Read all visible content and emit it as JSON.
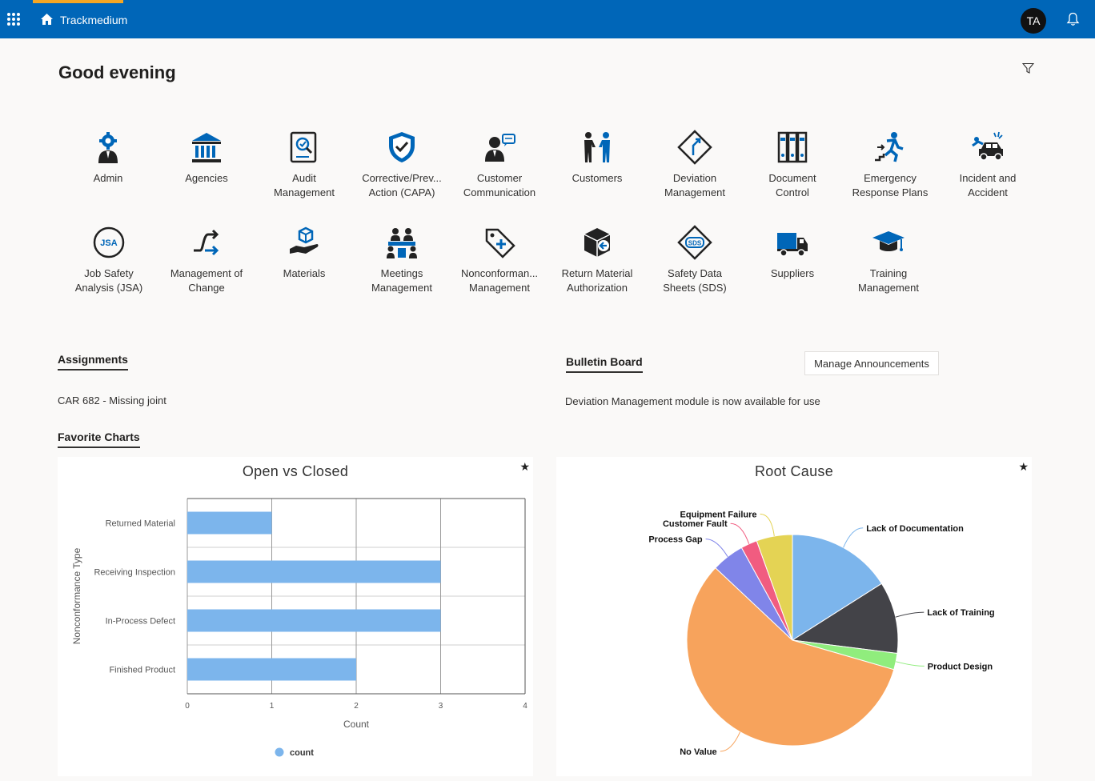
{
  "header": {
    "app_name": "Trackmedium",
    "avatar_initials": "TA",
    "brand_color": "#0066b8",
    "accent_color": "#f5a623"
  },
  "greeting": "Good evening",
  "modules": [
    {
      "line1": "Admin",
      "line2": "",
      "icon": "admin-gear-icon"
    },
    {
      "line1": "Agencies",
      "line2": "",
      "icon": "agency-building-icon"
    },
    {
      "line1": "Audit",
      "line2": "Management",
      "icon": "audit-icon"
    },
    {
      "line1": "Corrective/Prev...",
      "line2": "Action (CAPA)",
      "icon": "shield-check-icon"
    },
    {
      "line1": "Customer",
      "line2": "Communication",
      "icon": "customer-communication-icon"
    },
    {
      "line1": "Customers",
      "line2": "",
      "icon": "customers-handshake-icon"
    },
    {
      "line1": "Deviation",
      "line2": "Management",
      "icon": "deviation-icon"
    },
    {
      "line1": "Document",
      "line2": "Control",
      "icon": "binders-icon"
    },
    {
      "line1": "Emergency",
      "line2": "Response Plans",
      "icon": "emergency-exit-icon"
    },
    {
      "line1": "Incident and",
      "line2": "Accident",
      "icon": "car-crash-icon"
    },
    {
      "line1": "Job Safety",
      "line2": "Analysis (JSA)",
      "icon": "jsa-badge-icon"
    },
    {
      "line1": "Management of",
      "line2": "Change",
      "icon": "change-arrows-icon"
    },
    {
      "line1": "Materials",
      "line2": "",
      "icon": "materials-hand-box-icon"
    },
    {
      "line1": "Meetings",
      "line2": "Management",
      "icon": "meeting-people-icon"
    },
    {
      "line1": "Nonconforman...",
      "line2": "Management",
      "icon": "tag-plus-icon"
    },
    {
      "line1": "Return Material",
      "line2": "Authorization",
      "icon": "return-box-icon"
    },
    {
      "line1": "Safety Data",
      "line2": "Sheets (SDS)",
      "icon": "sds-diamond-icon"
    },
    {
      "line1": "Suppliers",
      "line2": "",
      "icon": "truck-icon"
    },
    {
      "line1": "Training",
      "line2": "Management",
      "icon": "graduation-cap-icon"
    }
  ],
  "assignments": {
    "title": "Assignments",
    "item": "CAR 682 - Missing joint"
  },
  "bulletin": {
    "title": "Bulletin Board",
    "button": "Manage Announcements",
    "item": "Deviation Management module is now available for use"
  },
  "favorites": {
    "title": "Favorite Charts"
  },
  "chart_data": [
    {
      "type": "bar",
      "orientation": "horizontal",
      "title": "Open vs Closed",
      "categories": [
        "Returned Material",
        "Receiving Inspection",
        "In-Process Defect",
        "Finished Product"
      ],
      "series": [
        {
          "name": "count",
          "values": [
            1,
            3,
            3,
            2
          ],
          "color": "#7cb5ec"
        }
      ],
      "xlabel": "Count",
      "ylabel": "Nonconformance Type",
      "xlim": [
        0,
        4
      ],
      "ticks": [
        "0",
        "1",
        "2",
        "3",
        "4"
      ],
      "grid": true,
      "legend": "bottom"
    },
    {
      "type": "pie",
      "title": "Root Cause",
      "slices": [
        {
          "label": "Lack of Documentation",
          "value": 16,
          "color": "#7cb5ec"
        },
        {
          "label": "Lack of Training",
          "value": 11,
          "color": "#434348"
        },
        {
          "label": "Product Design",
          "value": 2.5,
          "color": "#90ed7d"
        },
        {
          "label": "No Value",
          "value": 57.5,
          "color": "#f7a35c"
        },
        {
          "label": "Process Gap",
          "value": 5,
          "color": "#8085e9"
        },
        {
          "label": "Customer Fault",
          "value": 2.5,
          "color": "#f15c80"
        },
        {
          "label": "Equipment Failure",
          "value": 5.5,
          "color": "#e4d354"
        }
      ]
    }
  ]
}
